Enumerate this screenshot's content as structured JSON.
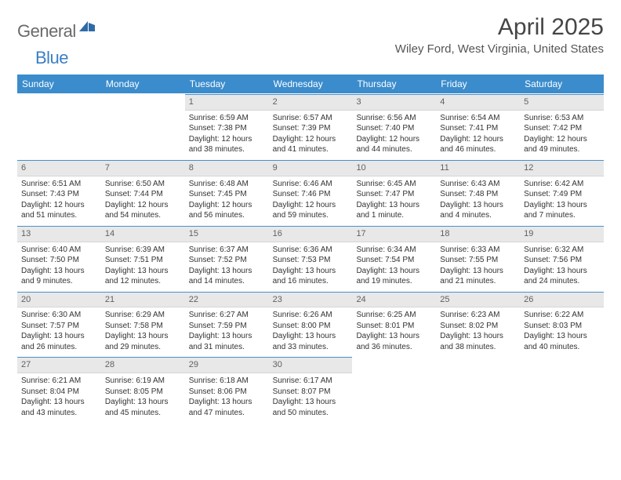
{
  "logo": {
    "text1": "General",
    "text2": "Blue"
  },
  "title": "April 2025",
  "location": "Wiley Ford, West Virginia, United States",
  "colors": {
    "header_bg": "#3b8ccc",
    "header_text": "#ffffff",
    "daynum_bg": "#e8e8e8",
    "daynum_border_top": "#4a8fc7",
    "body_text": "#333333",
    "logo_gray": "#6a6a6a",
    "logo_blue": "#3b7fc4"
  },
  "typography": {
    "title_fontsize": 30,
    "location_fontsize": 15,
    "dayheader_fontsize": 12,
    "daynum_fontsize": 11,
    "body_fontsize": 10
  },
  "day_headers": [
    "Sunday",
    "Monday",
    "Tuesday",
    "Wednesday",
    "Thursday",
    "Friday",
    "Saturday"
  ],
  "weeks": [
    [
      {
        "n": "",
        "sr": "",
        "ss": "",
        "dl1": "",
        "dl2": ""
      },
      {
        "n": "",
        "sr": "",
        "ss": "",
        "dl1": "",
        "dl2": ""
      },
      {
        "n": "1",
        "sr": "Sunrise: 6:59 AM",
        "ss": "Sunset: 7:38 PM",
        "dl1": "Daylight: 12 hours",
        "dl2": "and 38 minutes."
      },
      {
        "n": "2",
        "sr": "Sunrise: 6:57 AM",
        "ss": "Sunset: 7:39 PM",
        "dl1": "Daylight: 12 hours",
        "dl2": "and 41 minutes."
      },
      {
        "n": "3",
        "sr": "Sunrise: 6:56 AM",
        "ss": "Sunset: 7:40 PM",
        "dl1": "Daylight: 12 hours",
        "dl2": "and 44 minutes."
      },
      {
        "n": "4",
        "sr": "Sunrise: 6:54 AM",
        "ss": "Sunset: 7:41 PM",
        "dl1": "Daylight: 12 hours",
        "dl2": "and 46 minutes."
      },
      {
        "n": "5",
        "sr": "Sunrise: 6:53 AM",
        "ss": "Sunset: 7:42 PM",
        "dl1": "Daylight: 12 hours",
        "dl2": "and 49 minutes."
      }
    ],
    [
      {
        "n": "6",
        "sr": "Sunrise: 6:51 AM",
        "ss": "Sunset: 7:43 PM",
        "dl1": "Daylight: 12 hours",
        "dl2": "and 51 minutes."
      },
      {
        "n": "7",
        "sr": "Sunrise: 6:50 AM",
        "ss": "Sunset: 7:44 PM",
        "dl1": "Daylight: 12 hours",
        "dl2": "and 54 minutes."
      },
      {
        "n": "8",
        "sr": "Sunrise: 6:48 AM",
        "ss": "Sunset: 7:45 PM",
        "dl1": "Daylight: 12 hours",
        "dl2": "and 56 minutes."
      },
      {
        "n": "9",
        "sr": "Sunrise: 6:46 AM",
        "ss": "Sunset: 7:46 PM",
        "dl1": "Daylight: 12 hours",
        "dl2": "and 59 minutes."
      },
      {
        "n": "10",
        "sr": "Sunrise: 6:45 AM",
        "ss": "Sunset: 7:47 PM",
        "dl1": "Daylight: 13 hours",
        "dl2": "and 1 minute."
      },
      {
        "n": "11",
        "sr": "Sunrise: 6:43 AM",
        "ss": "Sunset: 7:48 PM",
        "dl1": "Daylight: 13 hours",
        "dl2": "and 4 minutes."
      },
      {
        "n": "12",
        "sr": "Sunrise: 6:42 AM",
        "ss": "Sunset: 7:49 PM",
        "dl1": "Daylight: 13 hours",
        "dl2": "and 7 minutes."
      }
    ],
    [
      {
        "n": "13",
        "sr": "Sunrise: 6:40 AM",
        "ss": "Sunset: 7:50 PM",
        "dl1": "Daylight: 13 hours",
        "dl2": "and 9 minutes."
      },
      {
        "n": "14",
        "sr": "Sunrise: 6:39 AM",
        "ss": "Sunset: 7:51 PM",
        "dl1": "Daylight: 13 hours",
        "dl2": "and 12 minutes."
      },
      {
        "n": "15",
        "sr": "Sunrise: 6:37 AM",
        "ss": "Sunset: 7:52 PM",
        "dl1": "Daylight: 13 hours",
        "dl2": "and 14 minutes."
      },
      {
        "n": "16",
        "sr": "Sunrise: 6:36 AM",
        "ss": "Sunset: 7:53 PM",
        "dl1": "Daylight: 13 hours",
        "dl2": "and 16 minutes."
      },
      {
        "n": "17",
        "sr": "Sunrise: 6:34 AM",
        "ss": "Sunset: 7:54 PM",
        "dl1": "Daylight: 13 hours",
        "dl2": "and 19 minutes."
      },
      {
        "n": "18",
        "sr": "Sunrise: 6:33 AM",
        "ss": "Sunset: 7:55 PM",
        "dl1": "Daylight: 13 hours",
        "dl2": "and 21 minutes."
      },
      {
        "n": "19",
        "sr": "Sunrise: 6:32 AM",
        "ss": "Sunset: 7:56 PM",
        "dl1": "Daylight: 13 hours",
        "dl2": "and 24 minutes."
      }
    ],
    [
      {
        "n": "20",
        "sr": "Sunrise: 6:30 AM",
        "ss": "Sunset: 7:57 PM",
        "dl1": "Daylight: 13 hours",
        "dl2": "and 26 minutes."
      },
      {
        "n": "21",
        "sr": "Sunrise: 6:29 AM",
        "ss": "Sunset: 7:58 PM",
        "dl1": "Daylight: 13 hours",
        "dl2": "and 29 minutes."
      },
      {
        "n": "22",
        "sr": "Sunrise: 6:27 AM",
        "ss": "Sunset: 7:59 PM",
        "dl1": "Daylight: 13 hours",
        "dl2": "and 31 minutes."
      },
      {
        "n": "23",
        "sr": "Sunrise: 6:26 AM",
        "ss": "Sunset: 8:00 PM",
        "dl1": "Daylight: 13 hours",
        "dl2": "and 33 minutes."
      },
      {
        "n": "24",
        "sr": "Sunrise: 6:25 AM",
        "ss": "Sunset: 8:01 PM",
        "dl1": "Daylight: 13 hours",
        "dl2": "and 36 minutes."
      },
      {
        "n": "25",
        "sr": "Sunrise: 6:23 AM",
        "ss": "Sunset: 8:02 PM",
        "dl1": "Daylight: 13 hours",
        "dl2": "and 38 minutes."
      },
      {
        "n": "26",
        "sr": "Sunrise: 6:22 AM",
        "ss": "Sunset: 8:03 PM",
        "dl1": "Daylight: 13 hours",
        "dl2": "and 40 minutes."
      }
    ],
    [
      {
        "n": "27",
        "sr": "Sunrise: 6:21 AM",
        "ss": "Sunset: 8:04 PM",
        "dl1": "Daylight: 13 hours",
        "dl2": "and 43 minutes."
      },
      {
        "n": "28",
        "sr": "Sunrise: 6:19 AM",
        "ss": "Sunset: 8:05 PM",
        "dl1": "Daylight: 13 hours",
        "dl2": "and 45 minutes."
      },
      {
        "n": "29",
        "sr": "Sunrise: 6:18 AM",
        "ss": "Sunset: 8:06 PM",
        "dl1": "Daylight: 13 hours",
        "dl2": "and 47 minutes."
      },
      {
        "n": "30",
        "sr": "Sunrise: 6:17 AM",
        "ss": "Sunset: 8:07 PM",
        "dl1": "Daylight: 13 hours",
        "dl2": "and 50 minutes."
      },
      {
        "n": "",
        "sr": "",
        "ss": "",
        "dl1": "",
        "dl2": ""
      },
      {
        "n": "",
        "sr": "",
        "ss": "",
        "dl1": "",
        "dl2": ""
      },
      {
        "n": "",
        "sr": "",
        "ss": "",
        "dl1": "",
        "dl2": ""
      }
    ]
  ]
}
